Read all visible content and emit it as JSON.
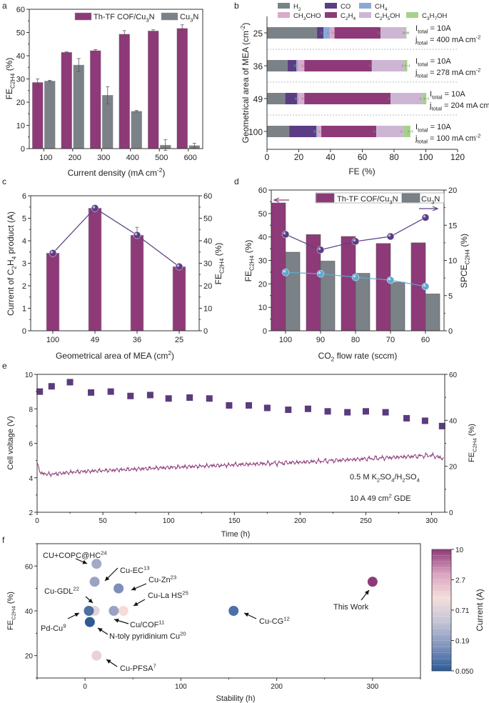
{
  "panel_labels": {
    "a": "a",
    "b": "b",
    "c": "c",
    "d": "d",
    "e": "e",
    "f": "f"
  },
  "colors": {
    "th_tf": "#8e3a78",
    "cu3n": "#7b8287",
    "spce_th": "#5a3d85",
    "spce_cu": "#5fa8d3",
    "voltage": "#8e3a78",
    "fe_squares": "#5b3b7d"
  },
  "chart_data": [
    {
      "panel": "a",
      "type": "bar",
      "categories": [
        "100",
        "200",
        "300",
        "400",
        "500",
        "600"
      ],
      "series": [
        {
          "name": "Th-TF COF/Cu_{3}N",
          "values": [
            28.5,
            41.5,
            42.2,
            49.3,
            50.7,
            51.8
          ],
          "errors": [
            1.5,
            0.2,
            0.4,
            1.5,
            0.5,
            1.5
          ],
          "color": "#8e3a78"
        },
        {
          "name": "Cu_{3}N",
          "values": [
            29.1,
            36.0,
            23.0,
            16.1,
            1.5,
            1.3
          ],
          "errors": [
            0.3,
            2.8,
            3.7,
            0.3,
            2.3,
            1.0
          ],
          "color": "#7b8287"
        }
      ],
      "xlabel": "Current density (mA cm^{-2})",
      "ylabel": "FE_{C2H4} (%)",
      "ylim": [
        0,
        60
      ],
      "yticks": [
        "0",
        "10",
        "20",
        "30",
        "40",
        "50",
        "60"
      ],
      "legend": "top-right"
    },
    {
      "panel": "b",
      "type": "bar",
      "orientation": "horizontal-stacked",
      "categories": [
        "25",
        "36",
        "49",
        "100"
      ],
      "series": [
        {
          "name": "H_{2}",
          "values": [
            31.5,
            13.0,
            11.5,
            14.0
          ],
          "color": "#7b8287"
        },
        {
          "name": "CO",
          "values": [
            4.0,
            5.5,
            7.5,
            17.0
          ],
          "color": "#5a3d85"
        },
        {
          "name": "CH_{4}",
          "values": [
            4.0,
            1.0,
            0.8,
            0.7
          ],
          "color": "#8aa9d6"
        },
        {
          "name": "CH_{3}CHO",
          "values": [
            3.0,
            4.0,
            3.7,
            2.5
          ],
          "color": "#dba9cc"
        },
        {
          "name": "C_{2}H_{4}",
          "values": [
            29.0,
            42.5,
            54.3,
            34.6
          ],
          "color": "#8e3a78"
        },
        {
          "name": "C_{2}H_{5}OH",
          "values": [
            15.5,
            20.5,
            20.0,
            17.0
          ],
          "color": "#cdb6d4"
        },
        {
          "name": "C_{3}H_{7}OH",
          "values": [
            0.8,
            1.8,
            2.5,
            4.5
          ],
          "color": "#a6d18b"
        }
      ],
      "annotations": [
        {
          "current": "I_{total} = 10A",
          "density": "j_{total} = 400 mA cm^{-2}"
        },
        {
          "current": "I_{total} = 10A",
          "density": "j_{total} = 278 mA cm^{-2}"
        },
        {
          "current": "I_{total} = 10A",
          "density": "j_{total} = 204 mA cm^{-2}"
        },
        {
          "current": "I_{total} = 10A",
          "density": "j_{total} = 100 mA cm^{-2}"
        }
      ],
      "xlabel": "FE (%)",
      "ylabel": "Geometrical area of MEA (cm^{-2})",
      "xlim": [
        0,
        120
      ],
      "xticks": [
        "0",
        "20",
        "40",
        "60",
        "80",
        "100",
        "120"
      ],
      "legend": "top"
    },
    {
      "panel": "c",
      "type": "bar",
      "categories": [
        "100",
        "49",
        "36",
        "25"
      ],
      "bars": {
        "values": [
          3.45,
          5.45,
          4.25,
          2.85
        ],
        "color": "#8e3a78"
      },
      "line": {
        "values": [
          34.5,
          54.5,
          42.5,
          28.5
        ],
        "errors": [
          0.5,
          1.0,
          3.5,
          0.5
        ],
        "color": "#5a3d85"
      },
      "xlabel": "Geometrical area of MEA (cm^{2})",
      "ylabel": "Current of C_{2}H_{4} product (A)",
      "y2label": "FE_{C2H4} (%)",
      "ylim": [
        0,
        6
      ],
      "yticks": [
        "0",
        "1",
        "2",
        "3",
        "4",
        "5",
        "6"
      ],
      "y2lim": [
        0,
        60
      ],
      "y2ticks": [
        "0",
        "10",
        "20",
        "30",
        "40",
        "50",
        "60"
      ]
    },
    {
      "panel": "d",
      "type": "bar",
      "categories": [
        "100",
        "90",
        "80",
        "70",
        "60"
      ],
      "series": [
        {
          "name": "Th-TF COF/Cu_{3}N",
          "values": [
            54.5,
            41.0,
            40.2,
            37.2,
            37.5
          ],
          "color": "#8e3a78"
        },
        {
          "name": "Cu_{3}N",
          "values": [
            33.5,
            29.7,
            24.5,
            20.7,
            15.7
          ],
          "color": "#7b8287"
        }
      ],
      "lines": [
        {
          "values": [
            13.7,
            11.5,
            12.7,
            13.4,
            16.1
          ],
          "color": "#5a3d85",
          "axis": "right"
        },
        {
          "values": [
            8.3,
            8.1,
            7.6,
            7.2,
            6.3
          ],
          "color": "#5fa8d3",
          "axis": "right"
        }
      ],
      "xlabel": "CO_{2} flow rate (sccm)",
      "ylabel": "FE_{C2H4} (%)",
      "y2label": "SPCE_{C2H4} (%)",
      "ylim": [
        0,
        60
      ],
      "yticks": [
        "0",
        "10",
        "20",
        "30",
        "40",
        "50",
        "60"
      ],
      "y2lim": [
        0,
        20
      ],
      "y2ticks": [
        "0",
        "5",
        "10",
        "15",
        "20"
      ],
      "legend": "top-right"
    },
    {
      "panel": "e",
      "type": "line",
      "voltage": {
        "trend": [
          [
            0,
            4.8
          ],
          [
            3,
            4.25
          ],
          [
            10,
            4.2
          ],
          [
            30,
            4.35
          ],
          [
            60,
            4.45
          ],
          [
            100,
            4.6
          ],
          [
            150,
            4.75
          ],
          [
            200,
            4.9
          ],
          [
            250,
            5.1
          ],
          [
            300,
            5.3
          ],
          [
            310,
            5.1
          ]
        ],
        "color": "#8e3a78"
      },
      "fe_points": {
        "time": [
          2,
          11,
          25,
          41,
          56,
          71,
          86,
          100,
          116,
          131,
          146,
          161,
          175,
          191,
          206,
          221,
          236,
          250,
          265,
          281,
          295,
          308
        ],
        "values": [
          52.5,
          54.8,
          56.6,
          52.1,
          52.5,
          50.6,
          51.0,
          49.5,
          49.9,
          49.5,
          46.5,
          46.5,
          45.4,
          44.6,
          45.0,
          43.9,
          43.5,
          43.9,
          43.5,
          40.9,
          39.8,
          37.5
        ],
        "color": "#5b3b7d"
      },
      "annotations": [
        "0.5 M K_{2}SO_{4}/H_{2}SO_{4}",
        "10 A  49 cm^{2} GDE"
      ],
      "xlabel": "Time (h)",
      "ylabel": "Cell voltage (V)",
      "y2label": "FE_{C2H4} (%)",
      "xlim": [
        0,
        310
      ],
      "xticks": [
        "0",
        "50",
        "100",
        "150",
        "200",
        "250",
        "300"
      ],
      "ylim": [
        2,
        10
      ],
      "yticks": [
        "2",
        "4",
        "6",
        "8",
        "10"
      ],
      "y2lim": [
        0,
        60
      ],
      "y2ticks": [
        "0",
        "20",
        "40",
        "60"
      ]
    },
    {
      "panel": "f",
      "type": "scatter",
      "points": [
        {
          "label": "CU+COPC@HC^{24}",
          "stability": 12,
          "fe": 61,
          "color": "#a3a9c6"
        },
        {
          "label": "Cu-EC^{13}",
          "stability": 10,
          "fe": 53,
          "color": "#9aa3c4"
        },
        {
          "label": "Cu-Zn^{23}",
          "stability": 35,
          "fe": 50,
          "color": "#7d8fba"
        },
        {
          "label": "Cu-GDL^{22}",
          "stability": 10,
          "fe": 40,
          "color": "#e6d4dc"
        },
        {
          "label": "Cu-La HS^{25}",
          "stability": 40,
          "fe": 40,
          "color": "#f5dcd8"
        },
        {
          "label": "Pd-Cu^{9}",
          "stability": 4,
          "fe": 40,
          "color": "#4f6fa5"
        },
        {
          "label": "Cu/COF^{11}",
          "stability": 30,
          "fe": 40,
          "color": "#9aa3c4"
        },
        {
          "label": "N-toly pyridinium Cu^{20}",
          "stability": 5,
          "fe": 35,
          "color": "#2e5a94"
        },
        {
          "label": "Cu-PFSA^{7}",
          "stability": 12,
          "fe": 20,
          "color": "#ead0d8"
        },
        {
          "label": "Cu-CG^{12}",
          "stability": 155,
          "fe": 40,
          "color": "#4d70a8"
        },
        {
          "label": "This Work",
          "stability": 300,
          "fe": 53,
          "color": "#8e3a78"
        }
      ],
      "xlabel": "Stability (h)",
      "ylabel": "FE_{C2H4} (%)",
      "xlim": [
        -50,
        350
      ],
      "xticks": [
        "0",
        "100",
        "200",
        "300"
      ],
      "ylim": [
        10,
        70
      ],
      "yticks": [
        "20",
        "40",
        "60"
      ],
      "colorbar": {
        "label": "Current (A)",
        "scale": "log",
        "ticks": [
          "10",
          "2.7",
          "0.71",
          "0.19",
          "0.050"
        ],
        "colors": [
          "#2b5b9a",
          "#7f93bd",
          "#c3c4d6",
          "#f4dedb",
          "#d9a3bf",
          "#8e3a78"
        ]
      }
    }
  ]
}
